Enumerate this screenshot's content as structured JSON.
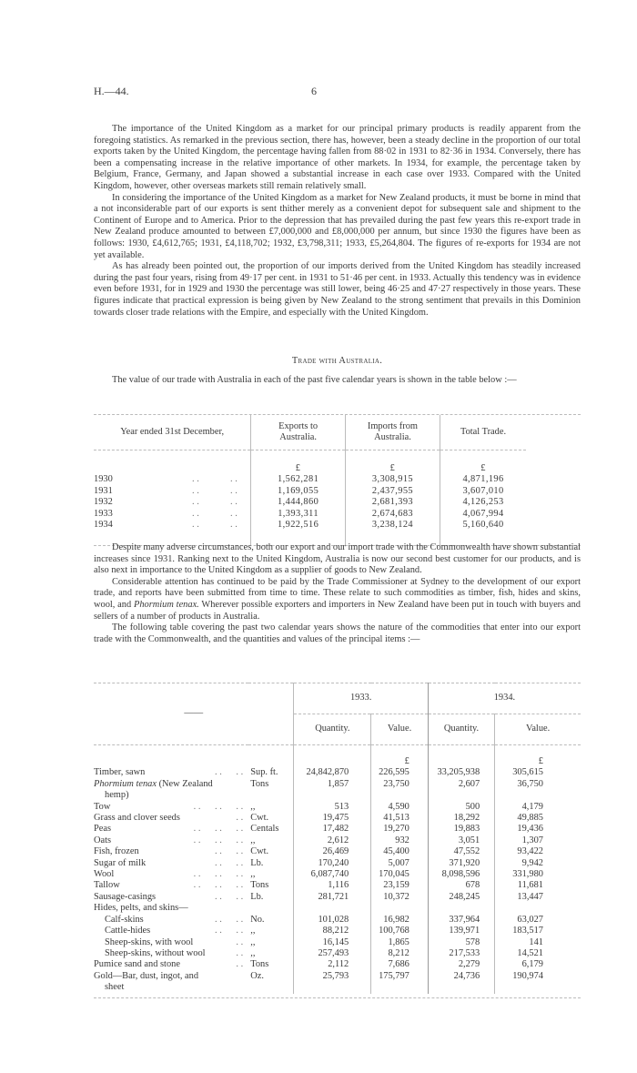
{
  "header": {
    "report_code": "H.—44.",
    "page_number": "6"
  },
  "paragraphs_top": [
    "The importance of the United Kingdom as a market for our principal primary products is readily apparent from the foregoing statistics. As remarked in the previous section, there has, however, been a steady decline in the proportion of our total exports taken by the United Kingdom, the percentage having fallen from 88·02 in 1931 to 82·36 in 1934. Conversely, there has been a compensating increase in the relative importance of other markets. In 1934, for example, the percentage taken by Belgium, France, Germany, and Japan showed a substantial increase in each case over 1933. Compared with the United Kingdom, however, other overseas markets still remain relatively small.",
    "In considering the importance of the United Kingdom as a market for New Zealand products, it must be borne in mind that a not inconsiderable part of our exports is sent thither merely as a convenient depot for subsequent sale and shipment to the Continent of Europe and to America. Prior to the depression that has prevailed during the past few years this re-export trade in New Zealand produce amounted to between £7,000,000 and £8,000,000 per annum, but since 1930 the figures have been as follows: 1930, £4,612,765; 1931, £4,118,702; 1932, £3,798,311; 1933, £5,264,804. The figures of re-exports for 1934 are not yet available.",
    "As has already been pointed out, the proportion of our imports derived from the United Kingdom has steadily increased during the past four years, rising from 49·17 per cent. in 1931 to 51·46 per cent. in 1933. Actually this tendency was in evidence even before 1931, for in 1929 and 1930 the percentage was still lower, being 46·25 and 47·27 respectively in those years. These figures indicate that practical expression is being given by New Zealand to the strong sentiment that prevails in this Dominion towards closer trade relations with the Empire, and especially with the United Kingdom."
  ],
  "section_heading": "Trade with Australia.",
  "intro_table1": "The value of our trade with Australia in each of the past five calendar years is shown in the table below :—",
  "table1": {
    "headers": [
      "Year ended 31st December,",
      "Exports to Australia.",
      "Imports from Australia.",
      "Total Trade."
    ],
    "currency": "£",
    "leader": ". .",
    "rows": [
      {
        "year": "1930",
        "exports": "1,562,281",
        "imports": "3,308,915",
        "total": "4,871,196"
      },
      {
        "year": "1931",
        "exports": "1,169,055",
        "imports": "2,437,955",
        "total": "3,607,010"
      },
      {
        "year": "1932",
        "exports": "1,444,860",
        "imports": "2,681,393",
        "total": "4,126,253"
      },
      {
        "year": "1933",
        "exports": "1,393,311",
        "imports": "2,674,683",
        "total": "4,067,994"
      },
      {
        "year": "1934",
        "exports": "1,922,516",
        "imports": "3,238,124",
        "total": "5,160,640"
      }
    ]
  },
  "paragraphs_mid": [
    "Despite many adverse circumstances, both our export and our import trade with the Commonwealth have shown substantial increases since 1931. Ranking next to the United Kingdom, Australia is now our second best customer for our products, and is also next in importance to the United Kingdom as a supplier of goods to New Zealand."
  ],
  "para_commissioner": {
    "before": "Considerable attention has continued to be paid by the Trade Commissioner at Sydney to the development of our export trade, and reports have been submitted from time to time. These relate to such commodities as timber, fish, hides and skins, wool, and ",
    "italic": "Phormium tenax.",
    "after": " Wherever possible exporters and importers in New Zealand have been put in touch with buyers and sellers of a number of products in Australia."
  },
  "intro_table2": "The following table covering the past two calendar years shows the nature of the commodities that enter into our export trade with the Commonwealth, and the quantities and values of the principal items :—",
  "table2": {
    "stub_header": "——",
    "years": [
      "1933.",
      "1934."
    ],
    "subheaders": [
      "Quantity.",
      "Value.",
      "Quantity.",
      "Value."
    ],
    "currency": "£",
    "rows": [
      {
        "item": "Timber, sawn",
        "dots": ". .      . .",
        "unit": "Sup. ft.",
        "q1933": "24,842,870",
        "v1933": "226,595",
        "q1934": "33,205,938",
        "v1934": "305,615"
      },
      {
        "item": "Phormium tenax",
        "item_suffix": " (New Zealand",
        "cont": "hemp)",
        "italic": true,
        "dots": "",
        "unit": "Tons",
        "q1933": "1,857",
        "v1933": "23,750",
        "q1934": "2,607",
        "v1934": "36,750"
      },
      {
        "item": "Tow",
        "dots": ". .      . .      . .",
        "unit": ",,",
        "q1933": "513",
        "v1933": "4,590",
        "q1934": "500",
        "v1934": "4,179"
      },
      {
        "item": "Grass and clover seeds",
        "dots": ". .",
        "unit": "Cwt.",
        "q1933": "19,475",
        "v1933": "41,513",
        "q1934": "18,292",
        "v1934": "49,885"
      },
      {
        "item": "Peas",
        "dots": ". .      . .      . .",
        "unit": "Centals",
        "q1933": "17,482",
        "v1933": "19,270",
        "q1934": "19,883",
        "v1934": "19,436"
      },
      {
        "item": "Oats",
        "dots": ". .      . .      . .",
        "unit": ",,",
        "q1933": "2,612",
        "v1933": "932",
        "q1934": "3,051",
        "v1934": "1,307"
      },
      {
        "item": "Fish, frozen",
        "dots": ". .      . .",
        "unit": "Cwt.",
        "q1933": "26,469",
        "v1933": "45,400",
        "q1934": "47,552",
        "v1934": "93,422"
      },
      {
        "item": "Sugar of milk",
        "dots": ". .      . .",
        "unit": "Lb.",
        "q1933": "170,240",
        "v1933": "5,007",
        "q1934": "371,920",
        "v1934": "9,942"
      },
      {
        "item": "Wool",
        "dots": ". .      . .      . .",
        "unit": ",,",
        "q1933": "6,087,740",
        "v1933": "170,045",
        "q1934": "8,098,596",
        "v1934": "331,980"
      },
      {
        "item": "Tallow",
        "dots": ". .      . .      . .",
        "unit": "Tons",
        "q1933": "1,116",
        "v1933": "23,159",
        "q1934": "678",
        "v1934": "11,681"
      },
      {
        "item": "Sausage-casings",
        "dots": ". .      . .",
        "unit": "Lb.",
        "q1933": "281,721",
        "v1933": "10,372",
        "q1934": "248,245",
        "v1934": "13,447"
      },
      {
        "item": "Hides, pelts, and skins—",
        "dots": "",
        "unit": "",
        "q1933": "",
        "v1933": "",
        "q1934": "",
        "v1934": ""
      },
      {
        "item": "Calf-skins",
        "indent": true,
        "dots": ". .      . .",
        "unit": "No.",
        "q1933": "101,028",
        "v1933": "16,982",
        "q1934": "337,964",
        "v1934": "63,027"
      },
      {
        "item": "Cattle-hides",
        "indent": true,
        "dots": ". .      . .",
        "unit": ",,",
        "q1933": "88,212",
        "v1933": "100,768",
        "q1934": "139,971",
        "v1934": "183,517"
      },
      {
        "item": "Sheep-skins, with wool",
        "indent": true,
        "dots": ". .",
        "unit": ",,",
        "q1933": "16,145",
        "v1933": "1,865",
        "q1934": "578",
        "v1934": "141"
      },
      {
        "item": "Sheep-skins, without wool",
        "indent": true,
        "dots": ". .",
        "unit": ",,",
        "q1933": "257,493",
        "v1933": "8,212",
        "q1934": "217,533",
        "v1934": "14,521"
      },
      {
        "item": "Pumice sand and stone",
        "dots": ". .",
        "unit": "Tons",
        "q1933": "2,112",
        "v1933": "7,686",
        "q1934": "2,279",
        "v1934": "6,179"
      },
      {
        "item": "Gold—Bar, dust, ingot, and",
        "cont": "sheet",
        "dots": "",
        "unit": "Oz.",
        "q1933": "25,793",
        "v1933": "175,797",
        "q1934": "24,736",
        "v1934": "190,974"
      }
    ]
  }
}
